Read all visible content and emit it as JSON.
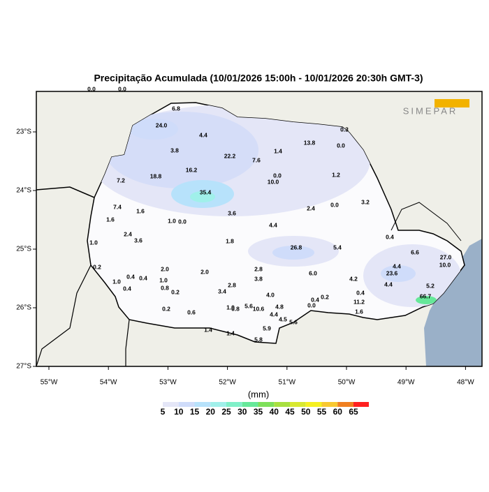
{
  "title": "Precipitação Acumulada (10/01/2026 15:00h - 10/01/2026 20:30h GMT-3)",
  "logo": "SIMEPAR",
  "map": {
    "lon_ticks": [
      {
        "value": -55,
        "label": "55°W"
      },
      {
        "value": -54,
        "label": "54°W"
      },
      {
        "value": -53,
        "label": "53°W"
      },
      {
        "value": -52,
        "label": "52°W"
      },
      {
        "value": -51,
        "label": "51°W"
      },
      {
        "value": -50,
        "label": "50°W"
      },
      {
        "value": -49,
        "label": "49°W"
      },
      {
        "value": -48,
        "label": "48°W"
      }
    ],
    "lat_ticks": [
      {
        "value": -23,
        "label": "23°S"
      },
      {
        "value": -24,
        "label": "24°S"
      },
      {
        "value": -25,
        "label": "25°S"
      },
      {
        "value": -26,
        "label": "26°S"
      },
      {
        "value": -27,
        "label": "27°S"
      }
    ],
    "stations": [
      "0.0",
      "0.0",
      "6.8",
      "24.0",
      "4.4",
      "13.8",
      "0.3",
      "0.0",
      "3.8",
      "22.2",
      "1.4",
      "7.6",
      "16.2",
      "18.8",
      "7.2",
      "0.0",
      "10.0",
      "1.2",
      "35.4",
      "3.2",
      "2.4",
      "0.0",
      "7.4",
      "1.6",
      "1.6",
      "3.6",
      "1.0",
      "0.0",
      "4.4",
      "2.4",
      "3.6",
      "1.0",
      "1.8",
      "0.4",
      "26.8",
      "5.4",
      "6.6",
      "27.0",
      "0.2",
      "2.0",
      "2.0",
      "2.8",
      "6.0",
      "23.6",
      "4.4",
      "4.2",
      "10.0",
      "3.8",
      "1.0",
      "0.4",
      "0.4",
      "1.0",
      "0.8",
      "2.8",
      "0.2",
      "3.4",
      "0.4",
      "4.0",
      "0.4",
      "4.4",
      "5.2",
      "11.2",
      "66.7",
      "0.2",
      "0.6",
      "1.0",
      "0.8",
      "5.6",
      "10.6",
      "4.8",
      "0.0",
      "0.4",
      "0.2",
      "4.4",
      "4.5",
      "5.6",
      "1.6",
      "5.9",
      "1.4",
      "1.4",
      "5.8"
    ]
  },
  "colorbar": {
    "unit": "(mm)",
    "levels": [
      5,
      10,
      15,
      20,
      25,
      30,
      35,
      40,
      45,
      50,
      55,
      60,
      65
    ],
    "colors": [
      "#ffffff",
      "#e4e6f7",
      "#cfdcfa",
      "#b7e2fb",
      "#a0f0ea",
      "#80f0c8",
      "#66e899",
      "#7ee05a",
      "#a8e040",
      "#d8e830",
      "#f5f020",
      "#f8c830",
      "#f08020",
      "#ff2020"
    ]
  }
}
